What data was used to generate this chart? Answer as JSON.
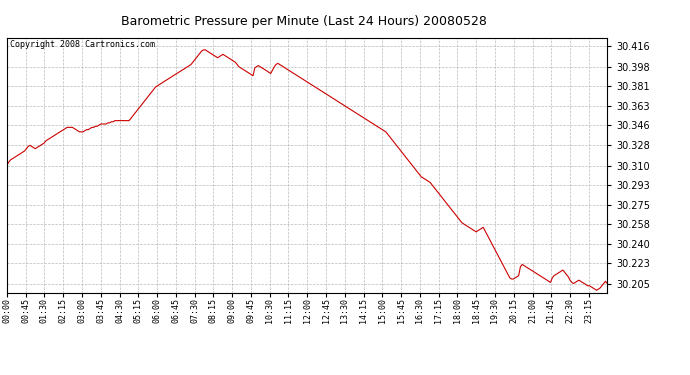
{
  "title": "Barometric Pressure per Minute (Last 24 Hours) 20080528",
  "copyright_text": "Copyright 2008 Cartronics.com",
  "line_color": "#cc0000",
  "background_color": "#ffffff",
  "grid_color": "#bbbbbb",
  "yticks": [
    30.205,
    30.223,
    30.24,
    30.258,
    30.275,
    30.293,
    30.31,
    30.328,
    30.346,
    30.363,
    30.381,
    30.398,
    30.416
  ],
  "ylim": [
    30.197,
    30.424
  ],
  "xtick_labels": [
    "00:00",
    "00:45",
    "01:30",
    "02:15",
    "03:00",
    "03:45",
    "04:30",
    "05:15",
    "06:00",
    "06:45",
    "07:30",
    "08:15",
    "09:00",
    "09:45",
    "10:30",
    "11:15",
    "12:00",
    "12:45",
    "13:30",
    "14:15",
    "15:00",
    "15:45",
    "16:30",
    "17:15",
    "18:00",
    "18:45",
    "19:30",
    "20:15",
    "21:00",
    "21:45",
    "22:30",
    "23:15"
  ],
  "pressure_data": [
    30.31,
    30.313,
    30.315,
    30.316,
    30.317,
    30.318,
    30.319,
    30.32,
    30.321,
    30.322,
    30.323,
    30.325,
    30.327,
    30.328,
    30.327,
    30.326,
    30.325,
    30.326,
    30.327,
    30.328,
    30.329,
    30.33,
    30.332,
    30.333,
    30.334,
    30.335,
    30.336,
    30.337,
    30.338,
    30.339,
    30.34,
    30.341,
    30.342,
    30.343,
    30.344,
    30.344,
    30.344,
    30.344,
    30.343,
    30.342,
    30.341,
    30.34,
    30.34,
    30.34,
    30.341,
    30.342,
    30.342,
    30.343,
    30.344,
    30.344,
    30.345,
    30.345,
    30.346,
    30.347,
    30.347,
    30.347,
    30.347,
    30.348,
    30.348,
    30.349,
    30.349,
    30.35,
    30.35,
    30.35,
    30.35,
    30.35,
    30.35,
    30.35,
    30.35,
    30.35,
    30.352,
    30.354,
    30.356,
    30.358,
    30.36,
    30.362,
    30.364,
    30.366,
    30.368,
    30.37,
    30.372,
    30.374,
    30.376,
    30.378,
    30.38,
    30.381,
    30.382,
    30.383,
    30.384,
    30.385,
    30.386,
    30.387,
    30.388,
    30.389,
    30.39,
    30.391,
    30.392,
    30.393,
    30.394,
    30.395,
    30.396,
    30.397,
    30.398,
    30.399,
    30.4,
    30.402,
    30.404,
    30.406,
    30.408,
    30.41,
    30.412,
    30.413,
    30.413,
    30.412,
    30.411,
    30.41,
    30.409,
    30.408,
    30.407,
    30.406,
    30.407,
    30.408,
    30.409,
    30.408,
    30.407,
    30.406,
    30.405,
    30.404,
    30.403,
    30.402,
    30.4,
    30.398,
    30.397,
    30.396,
    30.395,
    30.394,
    30.393,
    30.392,
    30.391,
    30.39,
    30.397,
    30.398,
    30.399,
    30.398,
    30.397,
    30.396,
    30.395,
    30.394,
    30.393,
    30.392,
    30.395,
    30.398,
    30.4,
    30.401,
    30.4,
    30.399,
    30.398,
    30.397,
    30.396,
    30.395,
    30.394,
    30.393,
    30.392,
    30.391,
    30.39,
    30.389,
    30.388,
    30.387,
    30.386,
    30.385,
    30.384,
    30.383,
    30.382,
    30.381,
    30.38,
    30.379,
    30.378,
    30.377,
    30.376,
    30.375,
    30.374,
    30.373,
    30.372,
    30.371,
    30.37,
    30.369,
    30.368,
    30.367,
    30.366,
    30.365,
    30.364,
    30.363,
    30.362,
    30.361,
    30.36,
    30.359,
    30.358,
    30.357,
    30.356,
    30.355,
    30.354,
    30.353,
    30.352,
    30.351,
    30.35,
    30.349,
    30.348,
    30.347,
    30.346,
    30.345,
    30.344,
    30.343,
    30.342,
    30.341,
    30.34,
    30.338,
    30.336,
    30.334,
    30.332,
    30.33,
    30.328,
    30.326,
    30.324,
    30.322,
    30.32,
    30.318,
    30.316,
    30.314,
    30.312,
    30.31,
    30.308,
    30.306,
    30.304,
    30.302,
    30.3,
    30.299,
    30.298,
    30.297,
    30.296,
    30.295,
    30.293,
    30.291,
    30.289,
    30.287,
    30.285,
    30.283,
    30.281,
    30.279,
    30.277,
    30.275,
    30.273,
    30.271,
    30.269,
    30.267,
    30.265,
    30.263,
    30.261,
    30.259,
    30.258,
    30.257,
    30.256,
    30.255,
    30.254,
    30.253,
    30.252,
    30.251,
    30.252,
    30.253,
    30.254,
    30.255,
    30.252,
    30.249,
    30.246,
    30.243,
    30.24,
    30.237,
    30.234,
    30.231,
    30.228,
    30.225,
    30.222,
    30.219,
    30.216,
    30.213,
    30.21,
    30.209,
    30.209,
    30.21,
    30.211,
    30.212,
    30.22,
    30.222,
    30.221,
    30.22,
    30.219,
    30.218,
    30.217,
    30.216,
    30.215,
    30.214,
    30.213,
    30.212,
    30.211,
    30.21,
    30.209,
    30.208,
    30.207,
    30.206,
    30.21,
    30.212,
    30.213,
    30.214,
    30.215,
    30.216,
    30.217,
    30.215,
    30.213,
    30.211,
    30.208,
    30.206,
    30.205,
    30.206,
    30.207,
    30.208,
    30.207,
    30.206,
    30.205,
    30.204,
    30.203,
    30.203,
    30.202,
    30.201,
    30.2,
    30.199,
    30.2,
    30.201,
    30.203,
    30.205,
    30.207,
    30.205
  ]
}
